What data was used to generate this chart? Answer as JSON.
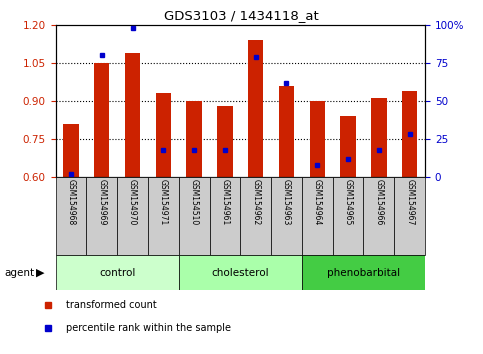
{
  "title": "GDS3103 / 1434118_at",
  "samples": [
    "GSM154968",
    "GSM154969",
    "GSM154970",
    "GSM154971",
    "GSM154510",
    "GSM154961",
    "GSM154962",
    "GSM154963",
    "GSM154964",
    "GSM154965",
    "GSM154966",
    "GSM154967"
  ],
  "transformed_count": [
    0.81,
    1.05,
    1.09,
    0.93,
    0.9,
    0.88,
    1.14,
    0.96,
    0.9,
    0.84,
    0.91,
    0.94
  ],
  "percentile_rank": [
    2,
    80,
    98,
    18,
    18,
    18,
    79,
    62,
    8,
    12,
    18,
    28
  ],
  "ylim_left": [
    0.6,
    1.2
  ],
  "ylim_right": [
    0,
    100
  ],
  "yticks_left": [
    0.6,
    0.75,
    0.9,
    1.05,
    1.2
  ],
  "yticks_right": [
    0,
    25,
    50,
    75,
    100
  ],
  "bar_color": "#cc2200",
  "dot_color": "#0000cc",
  "groups": [
    {
      "label": "control",
      "start": 0,
      "end": 3,
      "color": "#ccffcc"
    },
    {
      "label": "cholesterol",
      "start": 4,
      "end": 7,
      "color": "#aaffaa"
    },
    {
      "label": "phenobarbital",
      "start": 8,
      "end": 11,
      "color": "#44cc44"
    }
  ],
  "agent_label": "agent",
  "legend_items": [
    {
      "label": "transformed count",
      "color": "#cc2200"
    },
    {
      "label": "percentile rank within the sample",
      "color": "#0000cc"
    }
  ],
  "dotted_lines": [
    0.75,
    0.9,
    1.05
  ],
  "bar_width": 0.5,
  "tick_label_fontsize": 6,
  "group_fontsize": 8
}
